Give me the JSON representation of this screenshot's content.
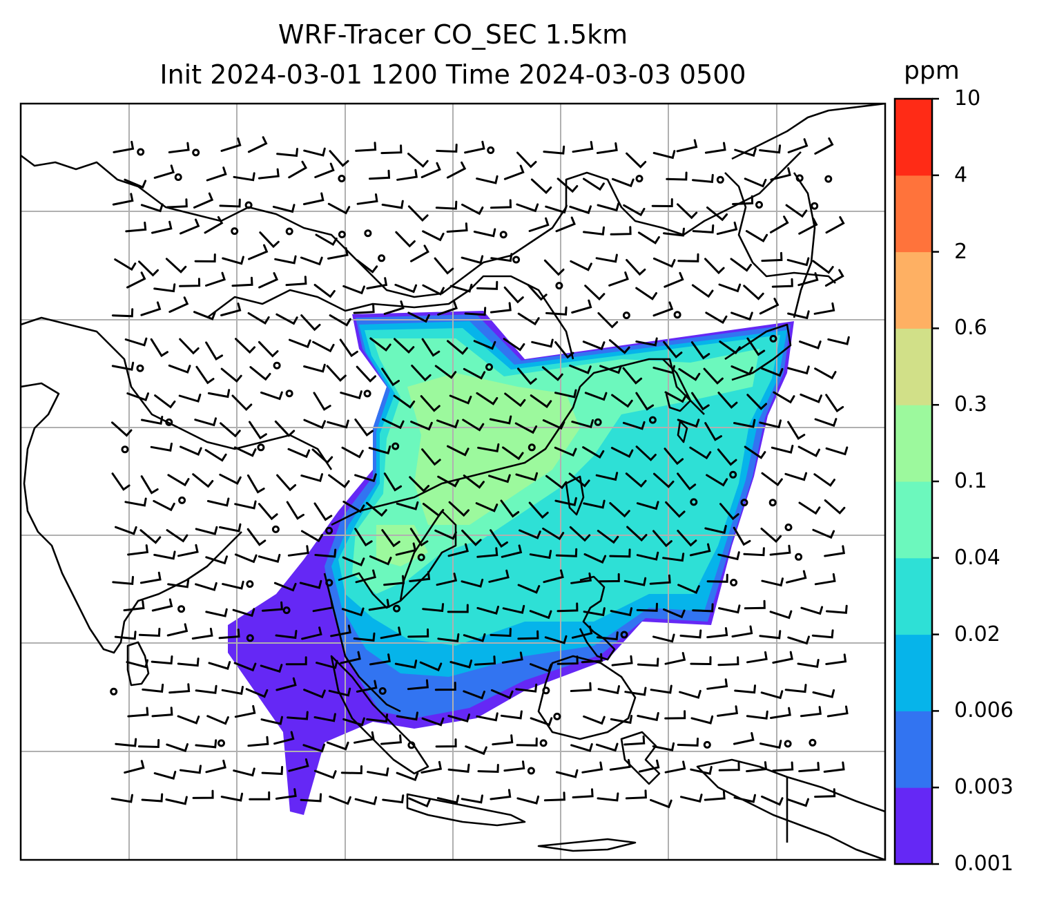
{
  "title": {
    "line1": "WRF-Tracer CO_SEC 1.5km",
    "line2": "Init 2024-03-01 1200 Time 2024-03-03 0500"
  },
  "colorbar": {
    "unit": "ppm",
    "levels": [
      "0.001",
      "0.003",
      "0.006",
      "0.02",
      "0.04",
      "0.1",
      "0.3",
      "0.6",
      "2",
      "4",
      "10"
    ],
    "colors": [
      "#6528f5",
      "#3274f1",
      "#06b4ea",
      "#2ee0d6",
      "#6cf8bd",
      "#9cf99d",
      "#d1e088",
      "#feb063",
      "#ff733b",
      "#ff2b16"
    ]
  },
  "map": {
    "projection": "lat-lon",
    "gridlines": true,
    "coastlines": true,
    "wind_barbs": true,
    "filled_field": "CO_SEC tracer concentration"
  }
}
